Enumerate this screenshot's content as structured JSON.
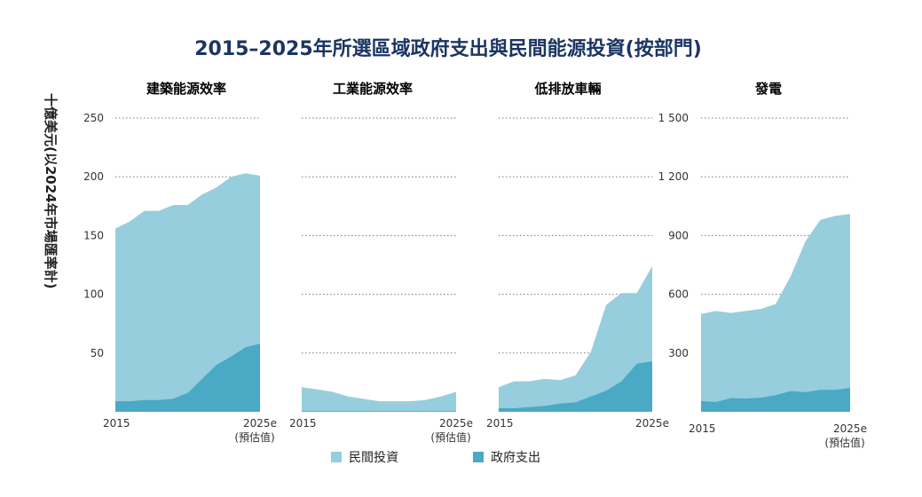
{
  "title": "2015–2025年所選區域政府支出與民間能源投資(按部門)",
  "ylabel": "十億美元(以2024年市場匯率計)",
  "colors": {
    "private": "#96cedd",
    "government": "#4aa9c4",
    "title": "#1b3563",
    "grid": "#777777"
  },
  "legend": [
    {
      "key": "private",
      "label": "民間投資"
    },
    {
      "key": "government",
      "label": "政府支出"
    }
  ],
  "chart_data": [
    {
      "type": "area",
      "title": "建築能源效率",
      "x": [
        "2015",
        "2016",
        "2017",
        "2018",
        "2019",
        "2020",
        "2021",
        "2022",
        "2023",
        "2024",
        "2025e"
      ],
      "x_tick_labels": {
        "first": "2015",
        "last": "2025e",
        "last_sub": "(預估值)"
      },
      "y_ticks": [
        "50",
        "100",
        "150",
        "200",
        "250"
      ],
      "ylim": [
        0,
        250
      ],
      "series": [
        {
          "name": "政府支出",
          "values": [
            9,
            9,
            10,
            10,
            11,
            16,
            28,
            40,
            47,
            55,
            58
          ]
        },
        {
          "name": "民間投資",
          "values": [
            156,
            162,
            171,
            171,
            176,
            176,
            185,
            191,
            200,
            203,
            201
          ]
        }
      ]
    },
    {
      "type": "area",
      "title": "工業能源效率",
      "x": [
        "2015",
        "2016",
        "2017",
        "2018",
        "2019",
        "2020",
        "2021",
        "2022",
        "2023",
        "2024",
        "2025e"
      ],
      "x_tick_labels": {
        "first": "2015",
        "last": "2025e",
        "last_sub": "(預估值)"
      },
      "y_ticks": [
        "50",
        "100",
        "150",
        "200",
        "250"
      ],
      "ylim": [
        0,
        250
      ],
      "series": [
        {
          "name": "政府支出",
          "values": [
            0.5,
            0.5,
            0.5,
            0.5,
            0.5,
            0.5,
            0.5,
            0.5,
            0.5,
            0.5,
            0.5
          ]
        },
        {
          "name": "民間投資",
          "values": [
            21,
            19,
            17,
            13,
            11,
            9,
            9,
            9,
            10,
            13,
            17
          ]
        }
      ]
    },
    {
      "type": "area",
      "title": "低排放車輛",
      "x": [
        "2015",
        "2016",
        "2017",
        "2018",
        "2019",
        "2020",
        "2021",
        "2022",
        "2023",
        "2024",
        "2025e"
      ],
      "x_tick_labels": {
        "first": "2015",
        "last": "2025e",
        "last_sub": ""
      },
      "y_ticks": [
        "50",
        "100",
        "150",
        "200",
        "250"
      ],
      "ylim": [
        0,
        250
      ],
      "series": [
        {
          "name": "政府支出",
          "values": [
            3,
            3,
            4,
            5,
            7,
            8,
            13,
            18,
            26,
            41,
            43
          ]
        },
        {
          "name": "民間投資",
          "values": [
            21,
            26,
            26,
            28,
            27,
            31,
            51,
            91,
            101,
            101,
            124
          ]
        }
      ]
    },
    {
      "type": "area",
      "title": "發電",
      "x": [
        "2015",
        "2016",
        "2017",
        "2018",
        "2019",
        "2020",
        "2021",
        "2022",
        "2023",
        "2024",
        "2025e"
      ],
      "x_tick_labels": {
        "first": "2015",
        "last": "2025e",
        "last_sub": "(預估值)"
      },
      "y_ticks": [
        "300",
        "600",
        "900",
        "1 200",
        "1 500"
      ],
      "ylim": [
        0,
        1500
      ],
      "series": [
        {
          "name": "政府支出",
          "values": [
            55,
            50,
            70,
            68,
            72,
            85,
            105,
            100,
            112,
            112,
            122
          ]
        },
        {
          "name": "民間投資",
          "values": [
            500,
            515,
            505,
            515,
            525,
            550,
            690,
            870,
            980,
            1000,
            1010
          ]
        }
      ]
    }
  ]
}
